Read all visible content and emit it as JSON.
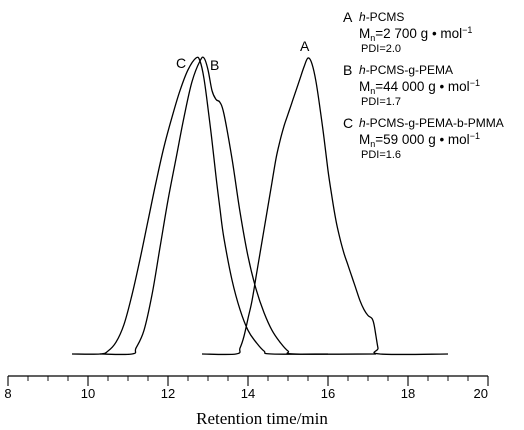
{
  "chart_data": {
    "type": "line",
    "title": "",
    "xlabel": "Retention time/min",
    "ylabel": "",
    "xlim": [
      8,
      20
    ],
    "xticks": [
      8,
      10,
      12,
      14,
      16,
      18,
      20
    ],
    "tick_labels": [
      "8",
      "10",
      "12",
      "14",
      "16",
      "18",
      "20"
    ],
    "grid": false,
    "legend_position": "top-right",
    "series": [
      {
        "id": "A",
        "label": "A",
        "legend": {
          "letter": "A",
          "name_prefix": "h",
          "name_rest": "-PCMS",
          "mn_value": "=2 700 g • mol",
          "mn_exp": "−1",
          "pdi": "PDI=2.0"
        },
        "points": [
          [
            12.85,
            0
          ],
          [
            13.7,
            0
          ],
          [
            13.8,
            0.02
          ],
          [
            13.9,
            0.06
          ],
          [
            14.0,
            0.12
          ],
          [
            14.1,
            0.18
          ],
          [
            14.2,
            0.26
          ],
          [
            14.3,
            0.34
          ],
          [
            14.4,
            0.42
          ],
          [
            14.5,
            0.5
          ],
          [
            14.6,
            0.58
          ],
          [
            14.7,
            0.66
          ],
          [
            14.8,
            0.72
          ],
          [
            14.9,
            0.77
          ],
          [
            15.0,
            0.81
          ],
          [
            15.1,
            0.85
          ],
          [
            15.2,
            0.89
          ],
          [
            15.3,
            0.93
          ],
          [
            15.4,
            0.97
          ],
          [
            15.5,
            1.0
          ],
          [
            15.6,
            0.98
          ],
          [
            15.7,
            0.92
          ],
          [
            15.8,
            0.83
          ],
          [
            15.9,
            0.73
          ],
          [
            16.0,
            0.62
          ],
          [
            16.1,
            0.53
          ],
          [
            16.2,
            0.45
          ],
          [
            16.3,
            0.39
          ],
          [
            16.4,
            0.34
          ],
          [
            16.5,
            0.3
          ],
          [
            16.6,
            0.26
          ],
          [
            16.7,
            0.22
          ],
          [
            16.8,
            0.18
          ],
          [
            16.9,
            0.15
          ],
          [
            17.0,
            0.13
          ],
          [
            17.1,
            0.12
          ],
          [
            17.15,
            0.1
          ],
          [
            17.2,
            0.06
          ],
          [
            17.25,
            0.02
          ],
          [
            17.3,
            0
          ],
          [
            19.0,
            0
          ]
        ]
      },
      {
        "id": "B",
        "label": "B",
        "legend": {
          "letter": "B",
          "name_prefix": "h",
          "name_rest": "-PCMS-g-PEMA",
          "mn_value": "=44 000 g • mol",
          "mn_exp": "−1",
          "pdi": "PDI=1.7"
        },
        "points": [
          [
            10.3,
            0
          ],
          [
            11.1,
            0
          ],
          [
            11.2,
            0.02
          ],
          [
            11.4,
            0.08
          ],
          [
            11.6,
            0.2
          ],
          [
            11.8,
            0.36
          ],
          [
            12.0,
            0.52
          ],
          [
            12.2,
            0.66
          ],
          [
            12.4,
            0.8
          ],
          [
            12.6,
            0.92
          ],
          [
            12.8,
            0.99
          ],
          [
            12.9,
            1.0
          ],
          [
            13.0,
            0.96
          ],
          [
            13.1,
            0.89
          ],
          [
            13.2,
            0.86
          ],
          [
            13.3,
            0.85
          ],
          [
            13.4,
            0.81
          ],
          [
            13.6,
            0.66
          ],
          [
            13.8,
            0.48
          ],
          [
            14.0,
            0.33
          ],
          [
            14.2,
            0.22
          ],
          [
            14.4,
            0.14
          ],
          [
            14.6,
            0.08
          ],
          [
            14.8,
            0.04
          ],
          [
            15.0,
            0.01
          ],
          [
            15.2,
            0
          ],
          [
            17.2,
            0
          ]
        ]
      },
      {
        "id": "C",
        "label": "C",
        "legend": {
          "letter": "C",
          "name_prefix": "h",
          "name_rest": "-PCMS-g-PEMA-b-PMMA",
          "mn_value": "=59 000 g • mol",
          "mn_exp": "−1",
          "pdi": "PDI=1.6"
        },
        "points": [
          [
            9.6,
            0
          ],
          [
            10.3,
            0
          ],
          [
            10.5,
            0.01
          ],
          [
            10.7,
            0.04
          ],
          [
            10.9,
            0.1
          ],
          [
            11.1,
            0.2
          ],
          [
            11.3,
            0.32
          ],
          [
            11.5,
            0.45
          ],
          [
            11.7,
            0.58
          ],
          [
            11.9,
            0.7
          ],
          [
            12.1,
            0.8
          ],
          [
            12.3,
            0.89
          ],
          [
            12.5,
            0.96
          ],
          [
            12.7,
            1.0
          ],
          [
            12.8,
            0.99
          ],
          [
            12.9,
            0.93
          ],
          [
            13.0,
            0.83
          ],
          [
            13.1,
            0.72
          ],
          [
            13.2,
            0.6
          ],
          [
            13.3,
            0.49
          ],
          [
            13.4,
            0.39
          ],
          [
            13.6,
            0.25
          ],
          [
            13.8,
            0.15
          ],
          [
            14.0,
            0.08
          ],
          [
            14.2,
            0.04
          ],
          [
            14.4,
            0.01
          ],
          [
            14.6,
            0
          ],
          [
            16.0,
            0
          ]
        ]
      }
    ]
  }
}
